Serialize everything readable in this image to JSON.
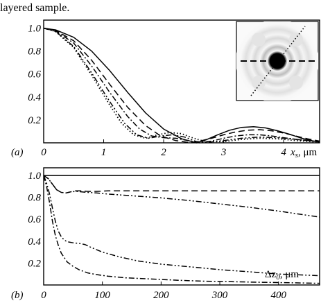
{
  "caption": "layered sample.",
  "chart_data": [
    {
      "type": "line",
      "panel_label": "(a)",
      "xlabel": "x",
      "xlabel_sub": "s",
      "xlabel_unit": ", μm",
      "xlim": [
        0,
        4.6
      ],
      "ylim": [
        0,
        1.07
      ],
      "xticks": [
        0,
        1,
        2,
        3,
        4
      ],
      "xtick_labels": [
        "0",
        "1",
        "2",
        "3",
        "4"
      ],
      "yticks": [
        0.2,
        0.4,
        0.6,
        0.8,
        1.0
      ],
      "ytick_labels": [
        "0.2",
        "0.4",
        "0.6",
        "0.8",
        "1.0"
      ],
      "series": [
        {
          "style": "solid",
          "x": [
            0,
            0.2,
            0.5,
            0.8,
            1.1,
            1.4,
            1.7,
            2.0,
            2.3,
            2.55,
            2.7,
            2.9,
            3.1,
            3.3,
            3.5,
            3.7,
            3.9,
            4.1,
            4.3,
            4.5,
            4.6
          ],
          "y": [
            1.0,
            0.985,
            0.92,
            0.8,
            0.63,
            0.44,
            0.26,
            0.12,
            0.035,
            0.0,
            0.025,
            0.07,
            0.11,
            0.135,
            0.14,
            0.13,
            0.105,
            0.075,
            0.04,
            0.015,
            0.005
          ]
        },
        {
          "style": "dashed",
          "x": [
            0,
            0.2,
            0.5,
            0.8,
            1.1,
            1.4,
            1.7,
            1.95,
            2.2,
            2.45,
            2.6,
            2.8,
            3.0,
            3.2,
            3.4,
            3.6,
            3.8,
            4.0,
            4.2,
            4.4,
            4.6
          ],
          "y": [
            1.0,
            0.98,
            0.89,
            0.72,
            0.51,
            0.31,
            0.15,
            0.06,
            0.02,
            0.0,
            0.015,
            0.04,
            0.07,
            0.095,
            0.11,
            0.115,
            0.105,
            0.085,
            0.06,
            0.035,
            0.015
          ]
        },
        {
          "style": "dashdot",
          "x": [
            0,
            0.2,
            0.5,
            0.8,
            1.1,
            1.4,
            1.6,
            1.8,
            2.0,
            2.2,
            2.4,
            2.6,
            2.8,
            3.0,
            3.2,
            3.4,
            3.6,
            3.8,
            4.0,
            4.3,
            4.6
          ],
          "y": [
            1.0,
            0.975,
            0.87,
            0.67,
            0.44,
            0.23,
            0.12,
            0.06,
            0.045,
            0.04,
            0.02,
            0.0,
            0.015,
            0.04,
            0.06,
            0.07,
            0.07,
            0.06,
            0.045,
            0.025,
            0.01
          ]
        },
        {
          "style": "dashdotdot",
          "x": [
            0,
            0.2,
            0.5,
            0.8,
            1.1,
            1.35,
            1.55,
            1.75,
            1.95,
            2.15,
            2.35,
            2.55,
            2.75,
            3.0,
            3.3,
            3.6,
            3.9,
            4.2,
            4.6
          ],
          "y": [
            1.0,
            0.97,
            0.84,
            0.61,
            0.36,
            0.17,
            0.07,
            0.04,
            0.06,
            0.07,
            0.05,
            0.01,
            0.005,
            0.02,
            0.04,
            0.05,
            0.045,
            0.03,
            0.01
          ]
        },
        {
          "style": "dotted",
          "x": [
            0,
            0.2,
            0.5,
            0.8,
            1.1,
            1.3,
            1.5,
            1.7,
            1.9,
            2.1,
            2.3,
            2.5,
            2.7,
            3.0,
            3.3,
            3.6,
            3.9,
            4.2,
            4.6
          ],
          "y": [
            1.0,
            0.97,
            0.83,
            0.59,
            0.33,
            0.17,
            0.07,
            0.04,
            0.07,
            0.09,
            0.08,
            0.04,
            0.01,
            0.01,
            0.03,
            0.04,
            0.035,
            0.02,
            0.005
          ]
        }
      ]
    },
    {
      "type": "line",
      "panel_label": "(b)",
      "xlabel": "Δz",
      "xlabel_sub": "0",
      "xlabel_unit": ", μm",
      "xlim": [
        0,
        470
      ],
      "ylim": [
        0,
        1.07
      ],
      "xticks": [
        0,
        100,
        200,
        300,
        400
      ],
      "xtick_labels": [
        "0",
        "100",
        "200",
        "300",
        "400"
      ],
      "yticks": [
        0.2,
        0.4,
        0.6,
        0.8,
        1.0
      ],
      "ytick_labels": [
        "0.2",
        "0.4",
        "0.6",
        "0.8",
        "1.0"
      ],
      "series": [
        {
          "style": "solid",
          "x": [
            0,
            470
          ],
          "y": [
            1.0,
            1.0
          ]
        },
        {
          "style": "dashed",
          "x": [
            0,
            8,
            15,
            22,
            30,
            38,
            46,
            55,
            65,
            75,
            90,
            110,
            150,
            200,
            300,
            400,
            470
          ],
          "y": [
            1.0,
            0.97,
            0.92,
            0.87,
            0.845,
            0.84,
            0.85,
            0.86,
            0.86,
            0.855,
            0.855,
            0.86,
            0.86,
            0.86,
            0.86,
            0.86,
            0.86
          ]
        },
        {
          "style": "dashdotdot",
          "x": [
            0,
            8,
            15,
            22,
            30,
            38,
            46,
            55,
            65,
            75,
            90,
            110,
            150,
            200,
            250,
            300,
            350,
            400,
            470
          ],
          "y": [
            1.0,
            0.97,
            0.92,
            0.87,
            0.845,
            0.84,
            0.85,
            0.855,
            0.85,
            0.845,
            0.84,
            0.83,
            0.815,
            0.795,
            0.77,
            0.74,
            0.71,
            0.675,
            0.62
          ]
        },
        {
          "style": "dashdotdot",
          "x": [
            0,
            5,
            10,
            15,
            20,
            25,
            30,
            35,
            40,
            50,
            60,
            70,
            80,
            100,
            130,
            160,
            200,
            250,
            300,
            350,
            400,
            470
          ],
          "y": [
            1.0,
            0.93,
            0.83,
            0.7,
            0.58,
            0.49,
            0.44,
            0.41,
            0.395,
            0.385,
            0.38,
            0.37,
            0.345,
            0.3,
            0.255,
            0.22,
            0.19,
            0.165,
            0.14,
            0.12,
            0.1,
            0.085
          ]
        },
        {
          "style": "dashdot",
          "x": [
            0,
            5,
            10,
            15,
            20,
            25,
            30,
            40,
            50,
            60,
            75,
            90,
            110,
            140,
            180,
            220,
            270,
            320,
            370,
            420,
            470
          ],
          "y": [
            1.0,
            0.9,
            0.75,
            0.58,
            0.45,
            0.36,
            0.29,
            0.21,
            0.17,
            0.14,
            0.11,
            0.095,
            0.08,
            0.065,
            0.055,
            0.045,
            0.035,
            0.03,
            0.025,
            0.02,
            0.015
          ]
        }
      ]
    }
  ]
}
